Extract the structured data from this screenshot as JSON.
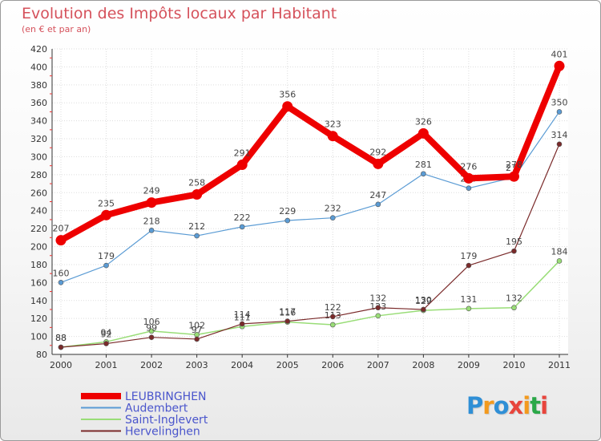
{
  "title": "Evolution des Impôts locaux par Habitant",
  "subtitle": "(en € et par an)",
  "logo": {
    "text": "Proxiti",
    "colors": [
      "#2f8fd6",
      "#f39a1e",
      "#2f8fd6",
      "#e8453c",
      "#f39a1e",
      "#2aa848",
      "#e8453c"
    ]
  },
  "chart_data": {
    "type": "line",
    "x": [
      "2000",
      "2001",
      "2002",
      "2003",
      "2004",
      "2005",
      "2006",
      "2007",
      "2008",
      "2009",
      "2010",
      "2011"
    ],
    "ylim": [
      80,
      420
    ],
    "yticks": [
      80,
      100,
      120,
      140,
      160,
      180,
      200,
      220,
      240,
      260,
      280,
      300,
      320,
      340,
      360,
      380,
      400,
      420
    ],
    "grid": true,
    "legend_position": "bottom-left",
    "series": [
      {
        "name": "LEUBRINGHEN",
        "color": "#ee0000",
        "values": [
          207,
          235,
          249,
          258,
          291,
          356,
          323,
          292,
          326,
          276,
          278,
          401
        ],
        "labels": [
          "207",
          "235",
          "249",
          "258",
          "291",
          "356",
          "323",
          "292",
          "326",
          "276",
          "278",
          "401"
        ]
      },
      {
        "name": "Audembert",
        "color": "#5a9bd4",
        "values": [
          160,
          179,
          218,
          212,
          222,
          229,
          232,
          247,
          281,
          265,
          277,
          350
        ],
        "labels": [
          "160",
          "179",
          "218",
          "212",
          "222",
          "229",
          "232",
          "247",
          "281",
          "265",
          "277",
          "350"
        ]
      },
      {
        "name": "Saint-Inglevert",
        "color": "#99dd77",
        "values": [
          88,
          94,
          106,
          102,
          111,
          116,
          113,
          123,
          129,
          131,
          132,
          184
        ],
        "labels": [
          "88",
          "94",
          "106",
          "102",
          "111",
          "116",
          "113",
          "123",
          "129",
          "131",
          "132",
          "184"
        ]
      },
      {
        "name": "Hervelinghen",
        "color": "#7a2a2a",
        "values": [
          88,
          92,
          99,
          97,
          114,
          117,
          122,
          132,
          130,
          179,
          195,
          314
        ],
        "labels": [
          "88",
          "92",
          "99",
          "97",
          "114",
          "117",
          "122",
          "132",
          "130",
          "179",
          "195",
          "314"
        ]
      }
    ]
  }
}
